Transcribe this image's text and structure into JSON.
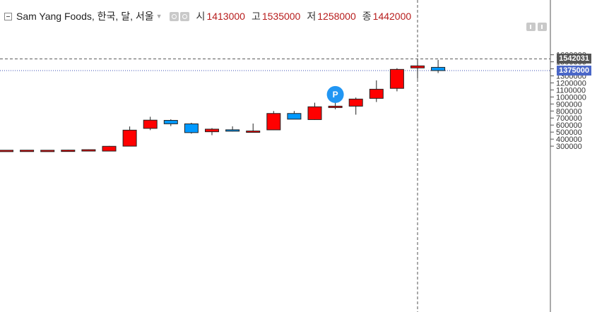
{
  "legend": {
    "symbol": "Sam Yang Foods, 한국, 달, 서울",
    "open_label": "시",
    "open_value": "1413000",
    "high_label": "고",
    "high_value": "1535000",
    "low_label": "저",
    "low_value": "1258000",
    "close_label": "종",
    "close_value": "1442000"
  },
  "price_tags": {
    "crosshair": "1542031",
    "last": "1375000"
  },
  "marker": {
    "label": "P",
    "color": "#2196f3"
  },
  "colors": {
    "up": "#ff0000",
    "down": "#0099ff",
    "last_price_line": "#3f51b5",
    "crosshair": "#555555",
    "crosshair_tag": "#555555",
    "last_tag": "#4a67c8"
  },
  "chart_data": {
    "type": "candlestick",
    "y_axis": {
      "position": "right",
      "range": [
        245000,
        1655000
      ],
      "ticks": [
        300000,
        400000,
        500000,
        600000,
        700000,
        800000,
        900000,
        1000000,
        1100000,
        1200000,
        1300000,
        1400000,
        1500000,
        1600000
      ],
      "tick_labels": [
        "300000",
        "400000",
        "500000",
        "600000",
        "700000",
        "800000",
        "900000",
        "1000000",
        "1100000",
        "1200000",
        "1300000",
        "1400000",
        "1500000",
        "1600000"
      ]
    },
    "grid": false,
    "crosshair_value": 1542031,
    "last_value": 1375000,
    "candles": [
      {
        "open": 240000,
        "high": 245000,
        "low": 240000,
        "close": 242000
      },
      {
        "open": 240000,
        "high": 246000,
        "low": 240000,
        "close": 243000
      },
      {
        "open": 240000,
        "high": 245000,
        "low": 240000,
        "close": 242000
      },
      {
        "open": 240000,
        "high": 248000,
        "low": 240000,
        "close": 244000
      },
      {
        "open": 240000,
        "high": 255000,
        "low": 240000,
        "close": 250000
      },
      {
        "open": 230000,
        "high": 303000,
        "low": 225000,
        "close": 298000
      },
      {
        "open": 300000,
        "high": 580000,
        "low": 298000,
        "close": 528000
      },
      {
        "open": 553000,
        "high": 718000,
        "low": 528000,
        "close": 670000
      },
      {
        "open": 667000,
        "high": 682000,
        "low": 585000,
        "close": 618000
      },
      {
        "open": 617000,
        "high": 633000,
        "low": 478000,
        "close": 493000
      },
      {
        "open": 505000,
        "high": 557000,
        "low": 456000,
        "close": 542000
      },
      {
        "open": 533000,
        "high": 582000,
        "low": 509000,
        "close": 520000
      },
      {
        "open": 513000,
        "high": 622000,
        "low": 507000,
        "close": 516000
      },
      {
        "open": 532000,
        "high": 800000,
        "low": 530000,
        "close": 765000
      },
      {
        "open": 765000,
        "high": 800000,
        "low": 684000,
        "close": 684000
      },
      {
        "open": 678000,
        "high": 918000,
        "low": 675000,
        "close": 860000
      },
      {
        "open": 860000,
        "high": 960000,
        "low": 825000,
        "close": 869000
      },
      {
        "open": 869000,
        "high": 992000,
        "low": 748000,
        "close": 970000
      },
      {
        "open": 980000,
        "high": 1236000,
        "low": 928000,
        "close": 1110000
      },
      {
        "open": 1122000,
        "high": 1409000,
        "low": 1080000,
        "close": 1392000
      },
      {
        "open": 1413000,
        "high": 1535000,
        "low": 1258000,
        "close": 1442000
      },
      {
        "open": 1421000,
        "high": 1528000,
        "low": 1340000,
        "close": 1375000
      }
    ],
    "candle_x_positions_note": ""
  }
}
